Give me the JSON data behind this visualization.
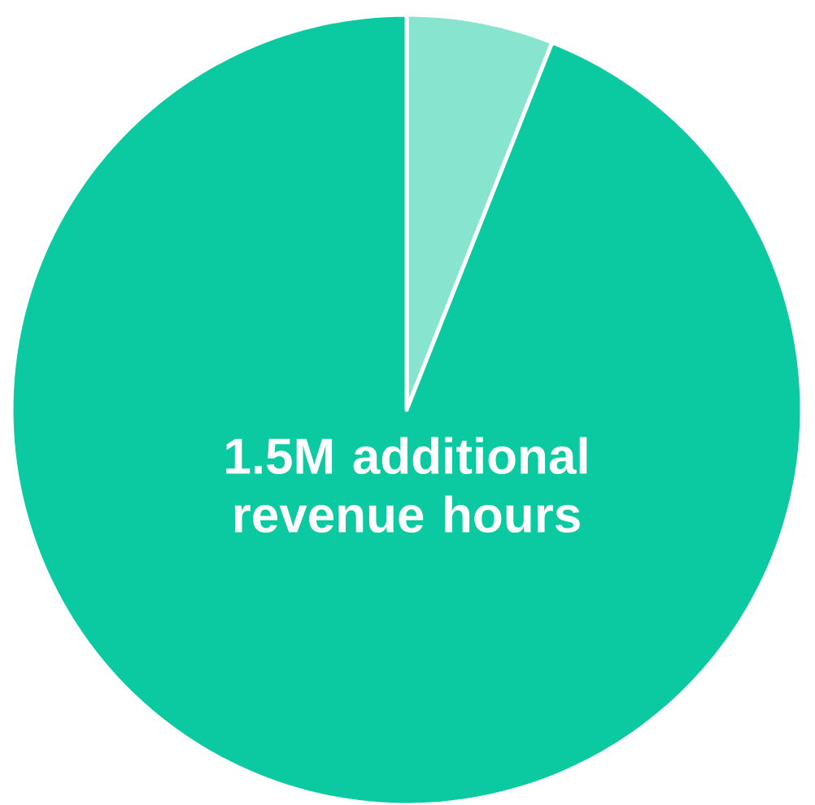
{
  "chart_data": {
    "type": "pie",
    "categories": [
      null,
      null
    ],
    "values": [
      6,
      94
    ],
    "colors": [
      "#86e4cf",
      "#0bc9a0"
    ],
    "annotations": [
      "1.5M additional revenue hours"
    ]
  }
}
